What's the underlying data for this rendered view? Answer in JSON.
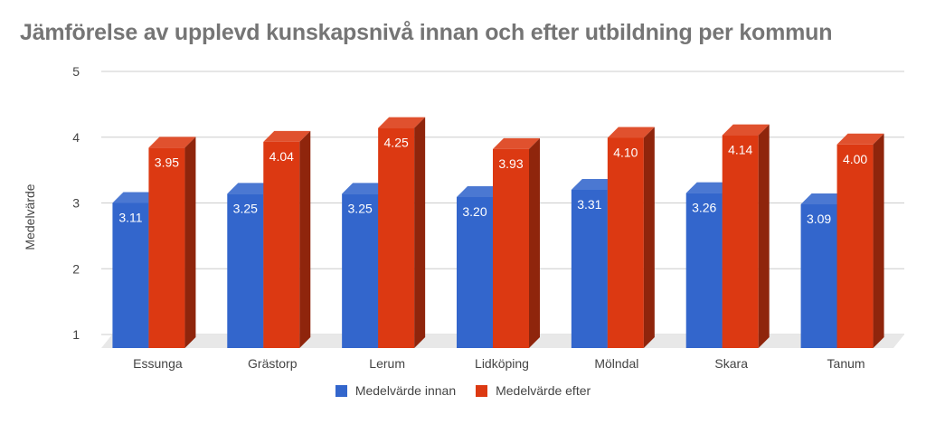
{
  "chart_data": {
    "type": "bar",
    "title": "Jämförelse av upplevd kunskapsnivå innan och efter utbildning per kommun",
    "xlabel": "",
    "ylabel": "Medelvärde",
    "ylim": [
      1,
      5
    ],
    "yticks": [
      "1",
      "2",
      "3",
      "4",
      "5"
    ],
    "grid": true,
    "legend_position": "bottom",
    "categories": [
      "Essunga",
      "Grästorp",
      "Lerum",
      "Lidköping",
      "Mölndal",
      "Skara",
      "Tanum"
    ],
    "series": [
      {
        "name": "Medelvärde innan",
        "color": "#3366cc",
        "values": [
          3.11,
          3.25,
          3.25,
          3.2,
          3.31,
          3.26,
          3.09
        ],
        "labels": [
          "3.11",
          "3.25",
          "3.25",
          "3.20",
          "3.31",
          "3.26",
          "3.09"
        ]
      },
      {
        "name": "Medelvärde efter",
        "color": "#dc3912",
        "values": [
          3.95,
          4.04,
          4.25,
          3.93,
          4.1,
          4.14,
          4.0
        ],
        "labels": [
          "3.95",
          "4.04",
          "4.25",
          "3.93",
          "4.10",
          "4.14",
          "4.00"
        ]
      }
    ]
  }
}
